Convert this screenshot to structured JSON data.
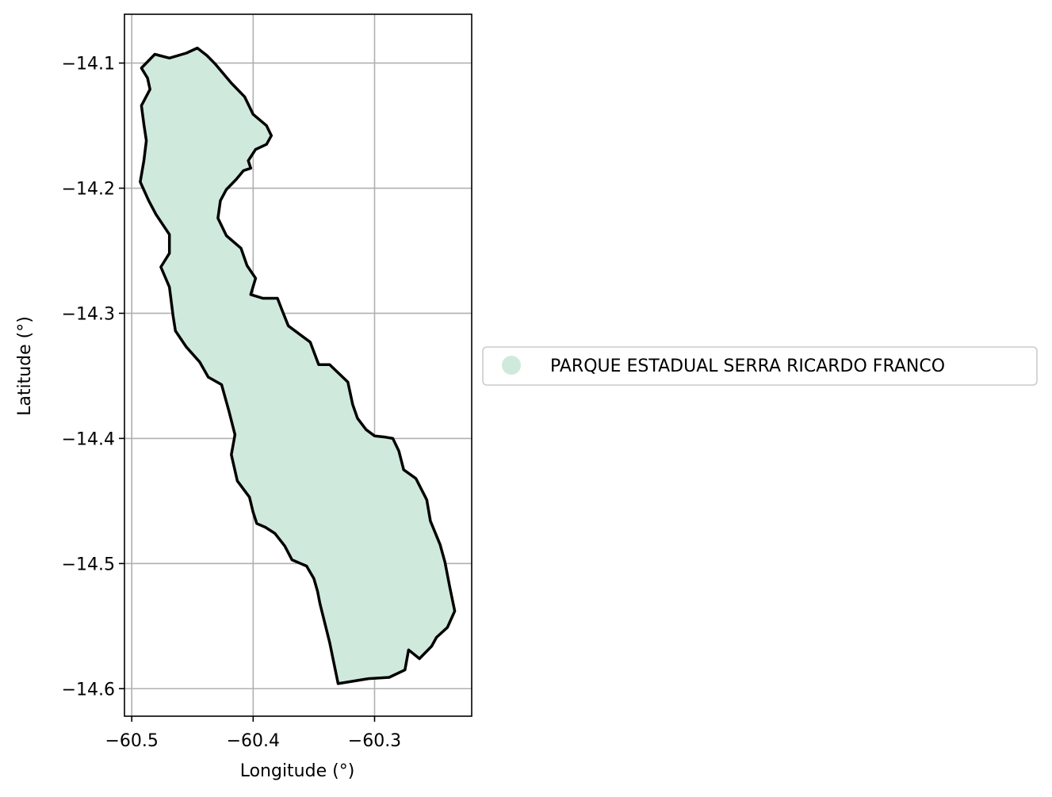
{
  "chart_data": {
    "type": "map",
    "xlabel": "Longitude (°)",
    "ylabel": "Latitude (°)",
    "xlim": [
      -60.506,
      -60.22
    ],
    "ylim": [
      -14.622,
      -14.061
    ],
    "x_ticks": [
      -60.5,
      -60.4,
      -60.3
    ],
    "y_ticks": [
      -14.1,
      -14.2,
      -14.3,
      -14.4,
      -14.5,
      -14.6
    ],
    "x_tick_labels": [
      "−60.5",
      "−60.4",
      "−60.3"
    ],
    "y_tick_labels": [
      "−14.1",
      "−14.2",
      "−14.3",
      "−14.4",
      "−14.5",
      "−14.6"
    ],
    "grid": true,
    "fill_color": "#cfeadd",
    "edge_color": "#000000",
    "legend": {
      "placement": "right",
      "entries": [
        {
          "label": "PARQUE ESTADUAL SERRA RICARDO FRANCO",
          "color": "#cfeadd"
        }
      ]
    },
    "polygon": [
      [
        -60.446,
        -14.088
      ],
      [
        -60.442,
        -14.091
      ],
      [
        -60.438,
        -14.094
      ],
      [
        -60.431,
        -14.101
      ],
      [
        -60.418,
        -14.116
      ],
      [
        -60.407,
        -14.127
      ],
      [
        -60.4,
        -14.141
      ],
      [
        -60.389,
        -14.15
      ],
      [
        -60.385,
        -14.158
      ],
      [
        -60.389,
        -14.165
      ],
      [
        -60.398,
        -14.169
      ],
      [
        -60.404,
        -14.178
      ],
      [
        -60.402,
        -14.184
      ],
      [
        -60.408,
        -14.186
      ],
      [
        -60.414,
        -14.193
      ],
      [
        -60.422,
        -14.201
      ],
      [
        -60.427,
        -14.21
      ],
      [
        -60.429,
        -14.224
      ],
      [
        -60.422,
        -14.238
      ],
      [
        -60.41,
        -14.248
      ],
      [
        -60.405,
        -14.262
      ],
      [
        -60.398,
        -14.272
      ],
      [
        -60.402,
        -14.285
      ],
      [
        -60.392,
        -14.288
      ],
      [
        -60.38,
        -14.288
      ],
      [
        -60.376,
        -14.298
      ],
      [
        -60.371,
        -14.31
      ],
      [
        -60.353,
        -14.323
      ],
      [
        -60.346,
        -14.341
      ],
      [
        -60.337,
        -14.341
      ],
      [
        -60.322,
        -14.355
      ],
      [
        -60.318,
        -14.373
      ],
      [
        -60.314,
        -14.384
      ],
      [
        -60.307,
        -14.393
      ],
      [
        -60.3,
        -14.398
      ],
      [
        -60.291,
        -14.399
      ],
      [
        -60.285,
        -14.4
      ],
      [
        -60.28,
        -14.41
      ],
      [
        -60.276,
        -14.425
      ],
      [
        -60.266,
        -14.432
      ],
      [
        -60.257,
        -14.449
      ],
      [
        -60.254,
        -14.466
      ],
      [
        -60.246,
        -14.485
      ],
      [
        -60.242,
        -14.499
      ],
      [
        -60.238,
        -14.519
      ],
      [
        -60.234,
        -14.538
      ],
      [
        -60.24,
        -14.551
      ],
      [
        -60.249,
        -14.559
      ],
      [
        -60.253,
        -14.566
      ],
      [
        -60.263,
        -14.576
      ],
      [
        -60.272,
        -14.569
      ],
      [
        -60.275,
        -14.585
      ],
      [
        -60.288,
        -14.591
      ],
      [
        -60.305,
        -14.592
      ],
      [
        -60.33,
        -14.596
      ],
      [
        -60.337,
        -14.563
      ],
      [
        -60.345,
        -14.532
      ],
      [
        -60.347,
        -14.522
      ],
      [
        -60.35,
        -14.512
      ],
      [
        -60.356,
        -14.502
      ],
      [
        -60.368,
        -14.497
      ],
      [
        -60.374,
        -14.486
      ],
      [
        -60.382,
        -14.476
      ],
      [
        -60.39,
        -14.471
      ],
      [
        -60.397,
        -14.468
      ],
      [
        -60.4,
        -14.459
      ],
      [
        -60.403,
        -14.447
      ],
      [
        -60.413,
        -14.434
      ],
      [
        -60.418,
        -14.413
      ],
      [
        -60.415,
        -14.397
      ],
      [
        -60.42,
        -14.378
      ],
      [
        -60.426,
        -14.357
      ],
      [
        -60.437,
        -14.351
      ],
      [
        -60.444,
        -14.339
      ],
      [
        -60.455,
        -14.327
      ],
      [
        -60.464,
        -14.314
      ],
      [
        -60.466,
        -14.302
      ],
      [
        -60.469,
        -14.279
      ],
      [
        -60.476,
        -14.263
      ],
      [
        -60.469,
        -14.252
      ],
      [
        -60.469,
        -14.237
      ],
      [
        -60.48,
        -14.221
      ],
      [
        -60.486,
        -14.21
      ],
      [
        -60.493,
        -14.195
      ],
      [
        -60.49,
        -14.178
      ],
      [
        -60.488,
        -14.162
      ],
      [
        -60.49,
        -14.149
      ],
      [
        -60.492,
        -14.134
      ],
      [
        -60.485,
        -14.121
      ],
      [
        -60.487,
        -14.112
      ],
      [
        -60.492,
        -14.104
      ],
      [
        -60.481,
        -14.093
      ],
      [
        -60.469,
        -14.096
      ],
      [
        -60.455,
        -14.092
      ]
    ]
  }
}
